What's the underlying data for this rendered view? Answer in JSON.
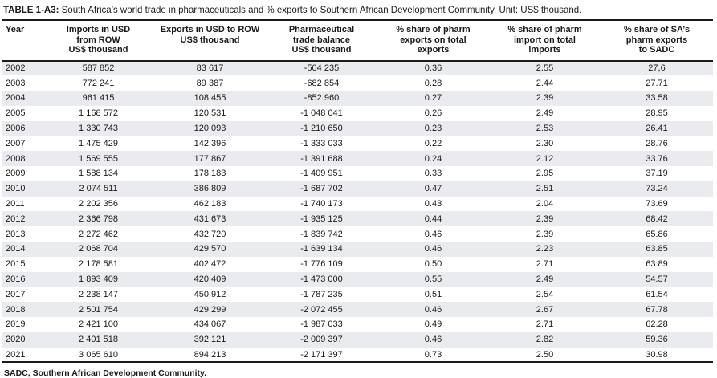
{
  "table": {
    "title_label": "TABLE 1-A3:",
    "title_text": " South Africa’s world trade in pharmaceuticals and % exports to Southern African Development Community. Unit: US$ thousand.",
    "columns": [
      "Year",
      "Imports in USD\nfrom ROW\nUS$ thousand",
      "Exports in USD to ROW\nUS$ thousand",
      "Pharmaceutical\ntrade balance\nUS$ thousand",
      "% share of pharm\nexports on total\nexports",
      "% share of pharm\nimport on total\nimports",
      "% share of SA’s\npharm exports\nto SADC"
    ],
    "rows": [
      [
        "2002",
        "587 852",
        "83 617",
        "-504 235",
        "0.36",
        "2.55",
        "27,6"
      ],
      [
        "2003",
        "772 241",
        "89 387",
        "-682 854",
        "0.28",
        "2.44",
        "27.71"
      ],
      [
        "2004",
        "961 415",
        "108 455",
        "-852 960",
        "0.27",
        "2.39",
        "33.58"
      ],
      [
        "2005",
        "1 168 572",
        "120 531",
        "-1 048 041",
        "0.26",
        "2.49",
        "28.95"
      ],
      [
        "2006",
        "1 330 743",
        "120 093",
        "-1 210 650",
        "0.23",
        "2.53",
        "26.41"
      ],
      [
        "2007",
        "1 475 429",
        "142 396",
        "-1 333 033",
        "0.22",
        "2.30",
        "28.76"
      ],
      [
        "2008",
        "1 569 555",
        "177 867",
        "-1 391 688",
        "0.24",
        "2.12",
        "33.76"
      ],
      [
        "2009",
        "1 588 134",
        "178 183",
        "-1 409 951",
        "0.33",
        "2.95",
        "37.19"
      ],
      [
        "2010",
        "2 074 511",
        "386 809",
        "-1 687 702",
        "0.47",
        "2.51",
        "73.24"
      ],
      [
        "2011",
        "2 202 356",
        "462 183",
        "-1 740 173",
        "0.43",
        "2.04",
        "73.69"
      ],
      [
        "2012",
        "2 366 798",
        "431 673",
        "-1 935 125",
        "0.44",
        "2.39",
        "68.42"
      ],
      [
        "2013",
        "2 272 462",
        "432 720",
        "-1 839 742",
        "0.46",
        "2.39",
        "65.86"
      ],
      [
        "2014",
        "2 068 704",
        "429 570",
        "-1 639 134",
        "0.46",
        "2.23",
        "63.85"
      ],
      [
        "2015",
        "2 178 581",
        "402 472",
        "-1 776 109",
        "0.50",
        "2.71",
        "63.89"
      ],
      [
        "2016",
        "1 893 409",
        "420 409",
        "-1 473 000",
        "0.55",
        "2.49",
        "54.57"
      ],
      [
        "2017",
        "2 238 147",
        "450 912",
        "-1 787 235",
        "0.51",
        "2.54",
        "61.54"
      ],
      [
        "2018",
        "2 501 754",
        "429 299",
        "-2 072 455",
        "0.46",
        "2.67",
        "67.78"
      ],
      [
        "2019",
        "2 421 100",
        "434 067",
        "-1 987 033",
        "0.49",
        "2.71",
        "62.28"
      ],
      [
        "2020",
        "2 401 518",
        "392 121",
        "-2 009 397",
        "0.46",
        "2.82",
        "59.36"
      ],
      [
        "2021",
        "3 065 610",
        "894 213",
        "-2 171 397",
        "0.73",
        "2.50",
        "30.98"
      ]
    ],
    "footnote": "SADC, Southern African Development Community."
  }
}
